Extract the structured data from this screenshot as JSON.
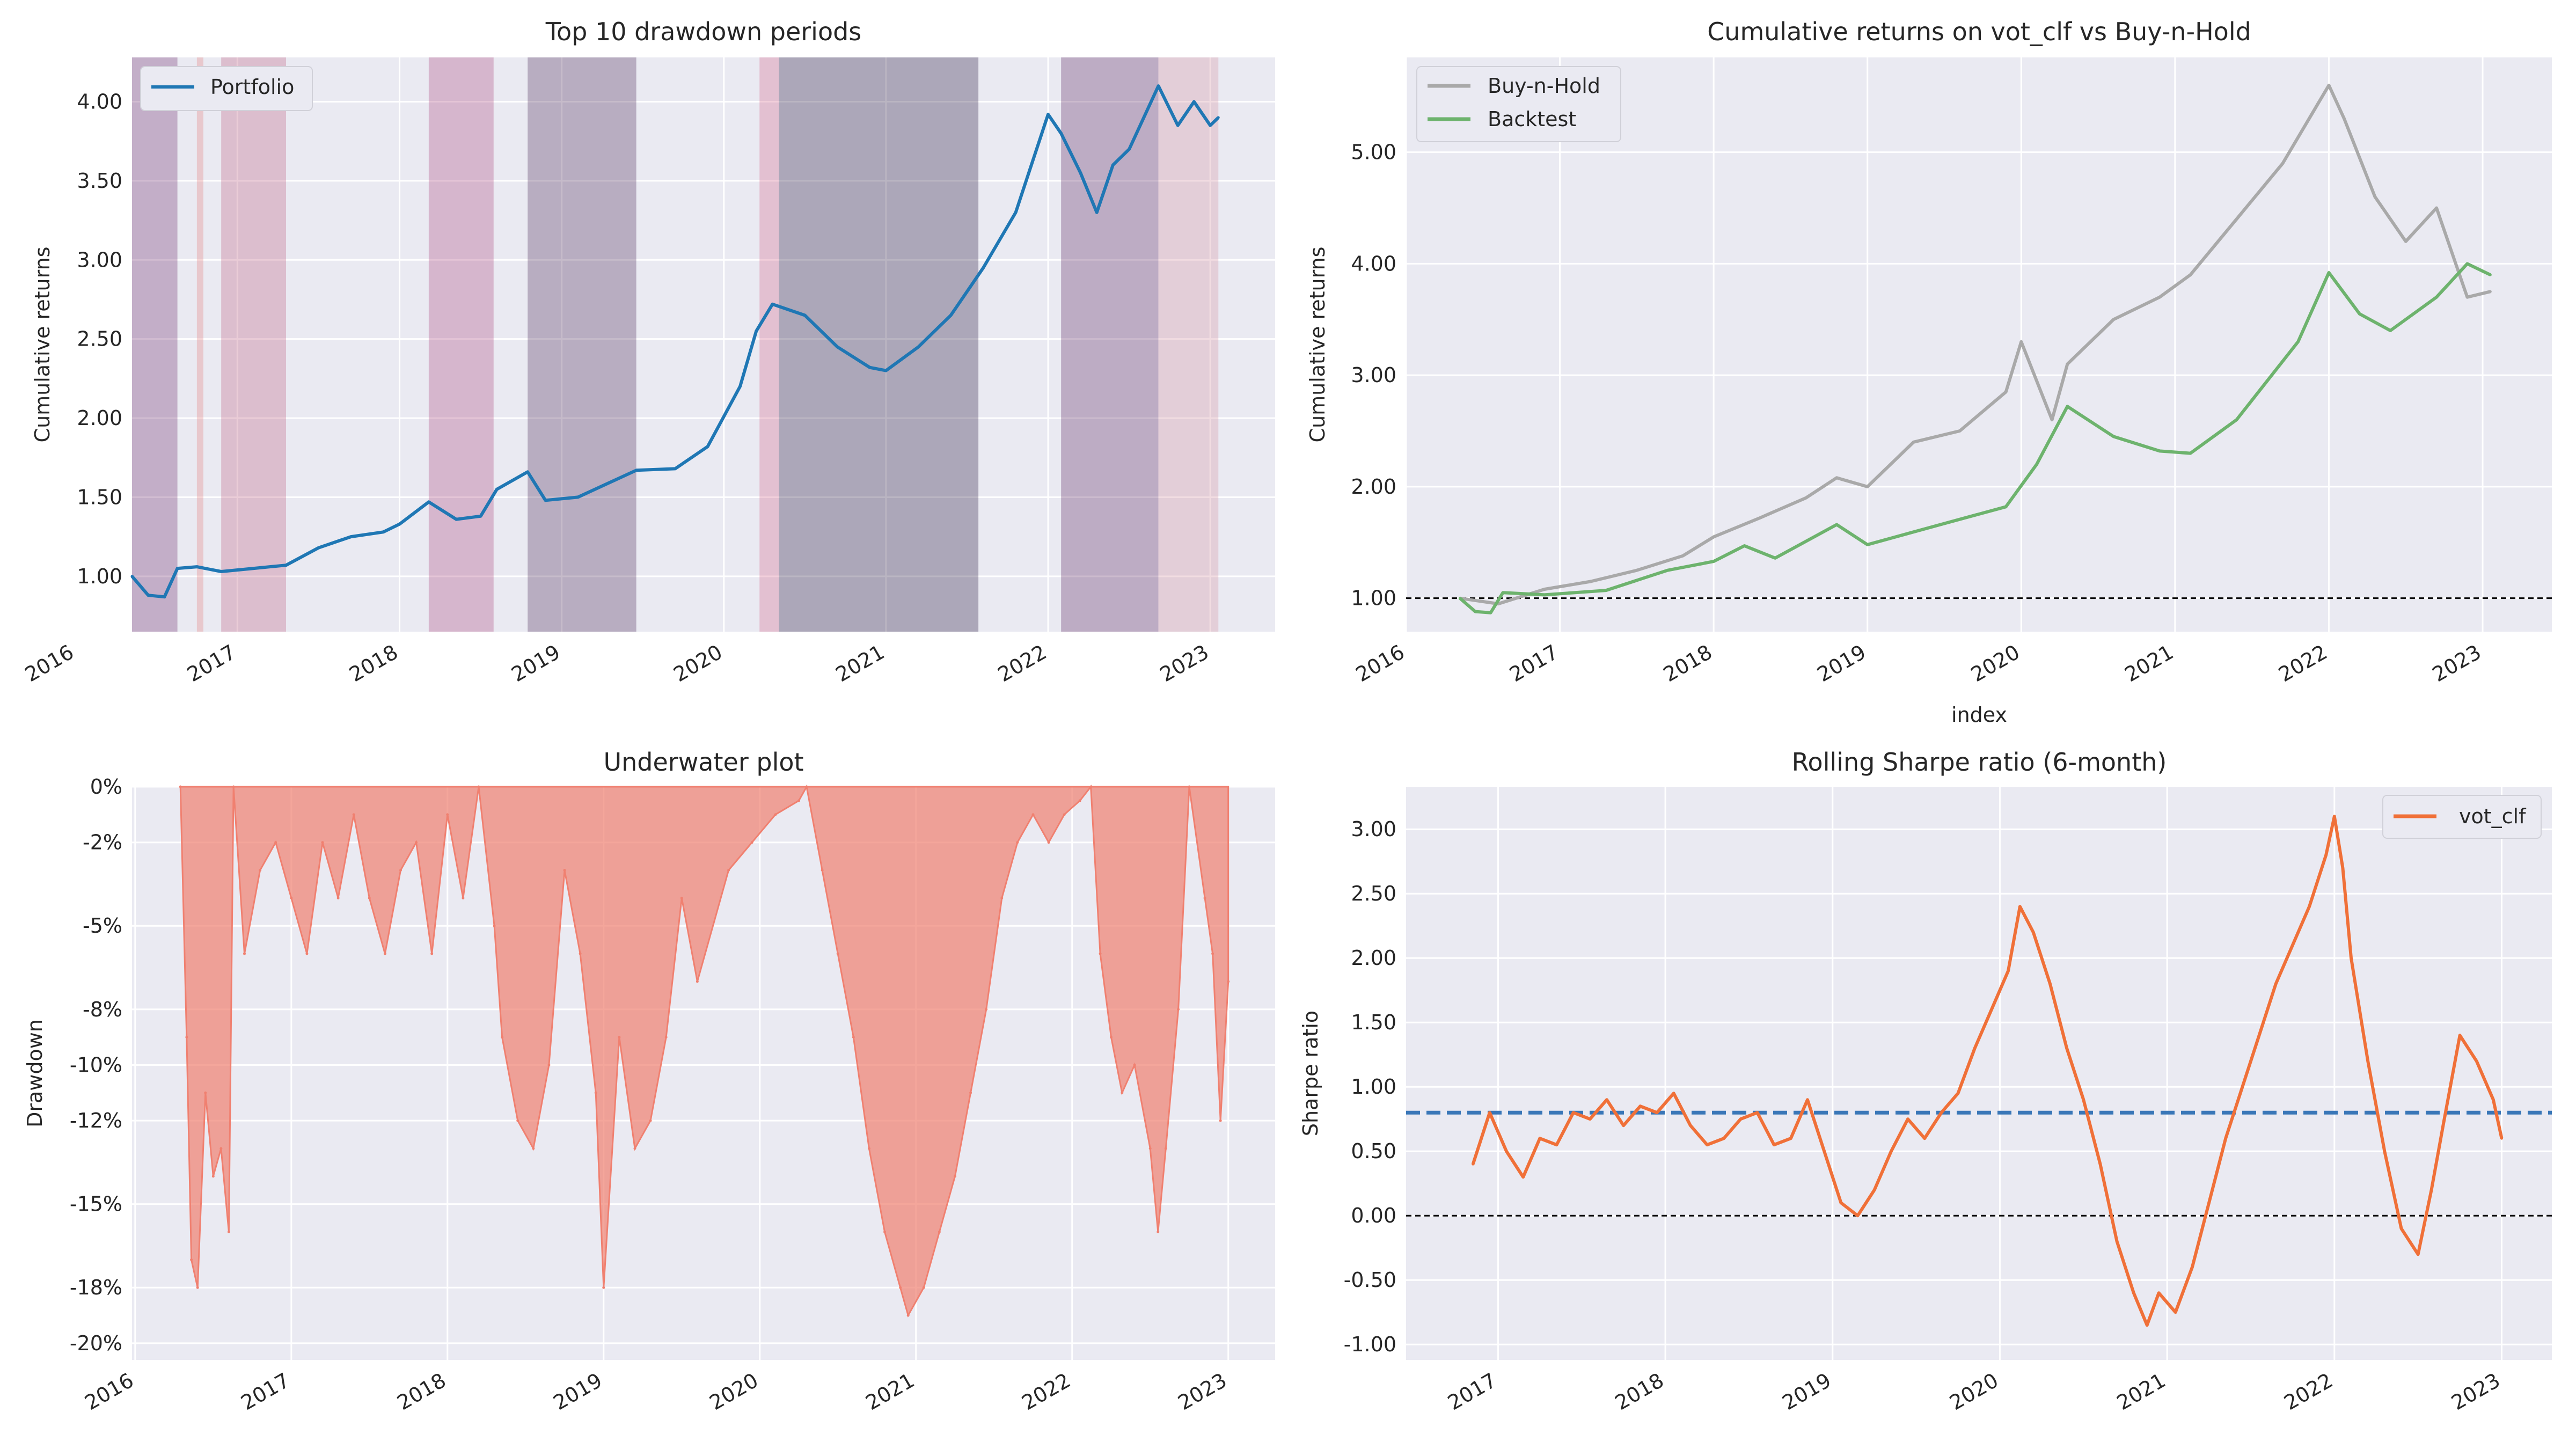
{
  "chart_data": [
    {
      "id": "drawdowns",
      "type": "line",
      "title": "Top 10 drawdown periods",
      "xlabel": "",
      "ylabel": "Cumulative returns",
      "x_ticks": [
        "2016",
        "2017",
        "2018",
        "2019",
        "2020",
        "2021",
        "2022",
        "2023"
      ],
      "y_ticks": [
        "1.00",
        "1.50",
        "2.00",
        "2.50",
        "3.00",
        "3.50",
        "4.00"
      ],
      "xlim": [
        2016.35,
        2023.4
      ],
      "ylim": [
        0.65,
        4.28
      ],
      "legend": {
        "placement": "top-left",
        "entries": [
          {
            "name": "Portfolio",
            "color": "#1f77b4"
          }
        ]
      },
      "shaded_periods": [
        {
          "start": 2016.35,
          "end": 2016.63,
          "color": "#7b3f7a"
        },
        {
          "start": 2016.75,
          "end": 2016.79,
          "color": "#e58a8a"
        },
        {
          "start": 2016.9,
          "end": 2017.3,
          "color": "#c46c8c"
        },
        {
          "start": 2018.18,
          "end": 2018.58,
          "color": "#b2568a"
        },
        {
          "start": 2018.79,
          "end": 2019.46,
          "color": "#5c3b66"
        },
        {
          "start": 2020.22,
          "end": 2020.34,
          "color": "#d67495"
        },
        {
          "start": 2020.34,
          "end": 2021.57,
          "color": "#3a2a4f"
        },
        {
          "start": 2022.08,
          "end": 2022.68,
          "color": "#6a3a70"
        },
        {
          "start": 2022.68,
          "end": 2023.05,
          "color": "#d89aaa"
        }
      ],
      "series": [
        {
          "name": "Portfolio",
          "color": "#1f77b4",
          "x": [
            2016.35,
            2016.45,
            2016.55,
            2016.63,
            2016.75,
            2016.9,
            2017.1,
            2017.3,
            2017.5,
            2017.7,
            2017.9,
            2018.0,
            2018.18,
            2018.35,
            2018.5,
            2018.6,
            2018.79,
            2018.9,
            2019.1,
            2019.46,
            2019.7,
            2019.9,
            2020.1,
            2020.2,
            2020.3,
            2020.5,
            2020.7,
            2020.9,
            2021.0,
            2021.2,
            2021.4,
            2021.6,
            2021.8,
            2022.0,
            2022.08,
            2022.2,
            2022.3,
            2022.4,
            2022.5,
            2022.68,
            2022.8,
            2022.9,
            2023.0,
            2023.05
          ],
          "y": [
            1.0,
            0.88,
            0.87,
            1.05,
            1.06,
            1.03,
            1.05,
            1.07,
            1.18,
            1.25,
            1.28,
            1.33,
            1.47,
            1.36,
            1.38,
            1.55,
            1.66,
            1.48,
            1.5,
            1.67,
            1.68,
            1.82,
            2.2,
            2.55,
            2.72,
            2.65,
            2.45,
            2.32,
            2.3,
            2.45,
            2.65,
            2.95,
            3.3,
            3.92,
            3.8,
            3.55,
            3.3,
            3.6,
            3.7,
            4.1,
            3.85,
            4.0,
            3.85,
            3.9
          ]
        }
      ]
    },
    {
      "id": "cumret",
      "type": "line",
      "title": "Cumulative returns on vot_clf vs Buy-n-Hold",
      "xlabel": "index",
      "ylabel": "Cumulative returns",
      "x_ticks": [
        "2016",
        "2017",
        "2018",
        "2019",
        "2020",
        "2021",
        "2022",
        "2023"
      ],
      "y_ticks": [
        "1.00",
        "2.00",
        "3.00",
        "4.00",
        "5.00"
      ],
      "xlim": [
        2016.0,
        2023.45
      ],
      "ylim": [
        0.7,
        5.85
      ],
      "legend": {
        "placement": "top-left",
        "entries": [
          {
            "name": "Buy-n-Hold",
            "color": "#a9a9a9"
          },
          {
            "name": "Backtest",
            "color": "#6db36d"
          }
        ]
      },
      "reference_line": {
        "y": 1.0,
        "style": "dashed",
        "color": "#000000"
      },
      "series": [
        {
          "name": "Buy-n-Hold",
          "color": "#a9a9a9",
          "x": [
            2016.35,
            2016.6,
            2016.9,
            2017.2,
            2017.5,
            2017.8,
            2018.0,
            2018.3,
            2018.6,
            2018.8,
            2019.0,
            2019.3,
            2019.6,
            2019.9,
            2020.0,
            2020.2,
            2020.3,
            2020.6,
            2020.9,
            2021.1,
            2021.4,
            2021.7,
            2022.0,
            2022.1,
            2022.3,
            2022.5,
            2022.7,
            2022.9,
            2023.05
          ],
          "y": [
            1.0,
            0.95,
            1.08,
            1.15,
            1.25,
            1.38,
            1.55,
            1.72,
            1.9,
            2.08,
            2.0,
            2.4,
            2.5,
            2.85,
            3.3,
            2.6,
            3.1,
            3.5,
            3.7,
            3.9,
            4.4,
            4.9,
            5.6,
            5.3,
            4.6,
            4.2,
            4.5,
            3.7,
            3.75
          ]
        },
        {
          "name": "Backtest",
          "color": "#6db36d",
          "x": [
            2016.35,
            2016.45,
            2016.55,
            2016.63,
            2016.9,
            2017.3,
            2017.7,
            2018.0,
            2018.2,
            2018.4,
            2018.8,
            2019.0,
            2019.5,
            2019.9,
            2020.1,
            2020.3,
            2020.6,
            2020.9,
            2021.1,
            2021.4,
            2021.6,
            2021.8,
            2022.0,
            2022.2,
            2022.4,
            2022.7,
            2022.9,
            2023.05
          ],
          "y": [
            1.0,
            0.88,
            0.87,
            1.05,
            1.03,
            1.07,
            1.25,
            1.33,
            1.47,
            1.36,
            1.66,
            1.48,
            1.67,
            1.82,
            2.2,
            2.72,
            2.45,
            2.32,
            2.3,
            2.6,
            2.95,
            3.3,
            3.92,
            3.55,
            3.4,
            3.7,
            4.0,
            3.9
          ]
        }
      ]
    },
    {
      "id": "underwater",
      "type": "area",
      "title": "Underwater plot",
      "xlabel": "",
      "ylabel": "Drawdown",
      "x_ticks": [
        "2016",
        "2017",
        "2018",
        "2019",
        "2020",
        "2021",
        "2022",
        "2023"
      ],
      "y_ticks": [
        "0%",
        "-2%",
        "-5%",
        "-8%",
        "-10%",
        "-12%",
        "-15%",
        "-18%",
        "-20%"
      ],
      "xlim": [
        2015.98,
        2023.3
      ],
      "ylim": [
        -20.6,
        0
      ],
      "series": [
        {
          "name": "",
          "color": "#f08070",
          "x": [
            2016.29,
            2016.33,
            2016.36,
            2016.4,
            2016.45,
            2016.5,
            2016.55,
            2016.6,
            2016.63,
            2016.7,
            2016.8,
            2016.9,
            2017.0,
            2017.1,
            2017.2,
            2017.3,
            2017.4,
            2017.5,
            2017.6,
            2017.7,
            2017.8,
            2017.9,
            2018.0,
            2018.1,
            2018.2,
            2018.3,
            2018.35,
            2018.45,
            2018.55,
            2018.65,
            2018.75,
            2018.85,
            2018.95,
            2019.0,
            2019.1,
            2019.2,
            2019.3,
            2019.4,
            2019.5,
            2019.6,
            2019.8,
            2019.95,
            2020.1,
            2020.25,
            2020.3,
            2020.4,
            2020.5,
            2020.6,
            2020.7,
            2020.8,
            2020.9,
            2020.95,
            2021.05,
            2021.15,
            2021.25,
            2021.35,
            2021.45,
            2021.55,
            2021.65,
            2021.75,
            2021.85,
            2021.95,
            2022.05,
            2022.12,
            2022.18,
            2022.25,
            2022.32,
            2022.4,
            2022.5,
            2022.55,
            2022.6,
            2022.68,
            2022.75,
            2022.85,
            2022.9,
            2022.95,
            2023.0
          ],
          "y": [
            0,
            -9,
            -17,
            -18,
            -11,
            -14,
            -13,
            -16,
            0,
            -6,
            -3,
            -2,
            -4,
            -6,
            -2,
            -4,
            -1,
            -4,
            -6,
            -3,
            -2,
            -6,
            -1,
            -4,
            0,
            -5,
            -9,
            -12,
            -13,
            -10,
            -3,
            -6,
            -11,
            -18,
            -9,
            -13,
            -12,
            -9,
            -4,
            -7,
            -3,
            -2,
            -1,
            -0.5,
            0,
            -3,
            -6,
            -9,
            -13,
            -16,
            -18,
            -19,
            -18,
            -16,
            -14,
            -11,
            -8,
            -4,
            -2,
            -1,
            -2,
            -1,
            -0.5,
            0,
            -6,
            -9,
            -11,
            -10,
            -13,
            -16,
            -13,
            -8,
            0,
            -4,
            -6,
            -12,
            -7
          ]
        }
      ]
    },
    {
      "id": "sharpe",
      "type": "line",
      "title": "Rolling Sharpe ratio (6-month)",
      "xlabel": "",
      "ylabel": "Sharpe ratio",
      "x_ticks": [
        "2017",
        "2018",
        "2019",
        "2020",
        "2021",
        "2022",
        "2023"
      ],
      "y_ticks": [
        "-1.00",
        "-0.50",
        "0.00",
        "0.50",
        "1.00",
        "1.50",
        "2.00",
        "2.50",
        "3.00"
      ],
      "xlim": [
        2016.45,
        2023.3
      ],
      "ylim": [
        -1.12,
        3.33
      ],
      "legend": {
        "placement": "top-right",
        "entries": [
          {
            "name": "vot_clf",
            "color": "#f07038"
          }
        ]
      },
      "reference_lines": [
        {
          "y": 0.8,
          "style": "dashed",
          "color": "#3a77b8"
        },
        {
          "y": 0.0,
          "style": "dashed",
          "color": "#000000"
        }
      ],
      "series": [
        {
          "name": "vot_clf",
          "color": "#f07038",
          "x": [
            2016.85,
            2016.95,
            2017.05,
            2017.15,
            2017.25,
            2017.35,
            2017.45,
            2017.55,
            2017.65,
            2017.75,
            2017.85,
            2017.95,
            2018.05,
            2018.15,
            2018.25,
            2018.35,
            2018.45,
            2018.55,
            2018.65,
            2018.75,
            2018.85,
            2018.95,
            2019.05,
            2019.15,
            2019.25,
            2019.35,
            2019.45,
            2019.55,
            2019.65,
            2019.75,
            2019.85,
            2019.95,
            2020.05,
            2020.12,
            2020.2,
            2020.3,
            2020.4,
            2020.5,
            2020.6,
            2020.7,
            2020.8,
            2020.88,
            2020.95,
            2021.05,
            2021.15,
            2021.25,
            2021.35,
            2021.45,
            2021.55,
            2021.65,
            2021.75,
            2021.85,
            2021.95,
            2022.0,
            2022.05,
            2022.1,
            2022.2,
            2022.3,
            2022.4,
            2022.5,
            2022.58,
            2022.65,
            2022.75,
            2022.85,
            2022.95,
            2023.0
          ],
          "y": [
            0.4,
            0.8,
            0.5,
            0.3,
            0.6,
            0.55,
            0.8,
            0.75,
            0.9,
            0.7,
            0.85,
            0.8,
            0.95,
            0.7,
            0.55,
            0.6,
            0.75,
            0.8,
            0.55,
            0.6,
            0.9,
            0.5,
            0.1,
            0.0,
            0.2,
            0.5,
            0.75,
            0.6,
            0.8,
            0.95,
            1.3,
            1.6,
            1.9,
            2.4,
            2.2,
            1.8,
            1.3,
            0.9,
            0.4,
            -0.2,
            -0.6,
            -0.85,
            -0.6,
            -0.75,
            -0.4,
            0.1,
            0.6,
            1.0,
            1.4,
            1.8,
            2.1,
            2.4,
            2.8,
            3.1,
            2.7,
            2.0,
            1.2,
            0.5,
            -0.1,
            -0.3,
            0.2,
            0.7,
            1.4,
            1.2,
            0.9,
            0.6
          ]
        }
      ]
    }
  ]
}
